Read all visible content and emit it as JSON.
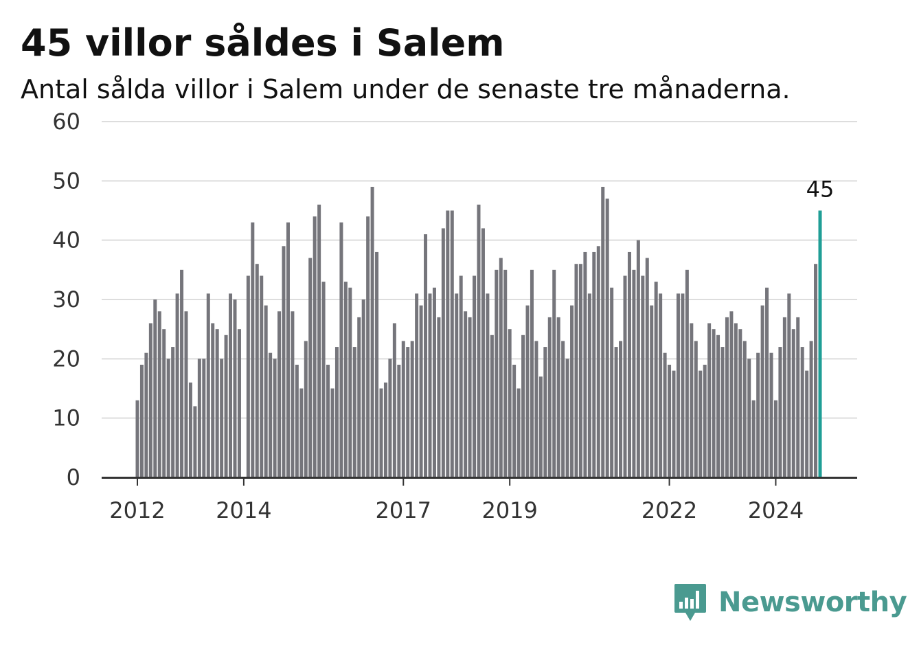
{
  "header": {
    "title": "45 villor såldes i Salem",
    "subtitle": "Antal sålda villor i Salem under de senaste tre månaderna."
  },
  "brand": {
    "name": "Newsworthy",
    "icon": "bar-chart-speech-bubble-icon",
    "color": "#4a9a90"
  },
  "chart_data": {
    "type": "bar",
    "title": "45 villor såldes i Salem",
    "subtitle": "Antal sålda villor i Salem under de senaste tre månaderna.",
    "xlabel": "",
    "ylabel": "",
    "ylim": [
      0,
      60
    ],
    "yticks": [
      0,
      10,
      20,
      30,
      40,
      50,
      60
    ],
    "grid": true,
    "legend": "none",
    "x_start": "2012-01",
    "frequency": "monthly",
    "xtick_labels": [
      {
        "label": "2012",
        "date": "2012-01"
      },
      {
        "label": "2014",
        "date": "2014-01"
      },
      {
        "label": "2017",
        "date": "2017-01"
      },
      {
        "label": "2019",
        "date": "2019-01"
      },
      {
        "label": "2022",
        "date": "2022-01"
      },
      {
        "label": "2024",
        "date": "2024-01"
      }
    ],
    "colors": {
      "bar": "#75757b",
      "highlight": "#1f9e96",
      "grid": "#dddddd",
      "axis": "#333333"
    },
    "highlight_label": "45",
    "values": [
      13,
      19,
      21,
      26,
      30,
      28,
      25,
      20,
      22,
      31,
      35,
      28,
      16,
      12,
      20,
      20,
      31,
      26,
      25,
      20,
      24,
      31,
      30,
      25,
      null,
      34,
      43,
      36,
      34,
      29,
      21,
      20,
      28,
      39,
      43,
      28,
      19,
      15,
      23,
      37,
      44,
      46,
      33,
      19,
      15,
      22,
      43,
      33,
      32,
      22,
      27,
      30,
      44,
      49,
      38,
      15,
      16,
      20,
      26,
      19,
      23,
      22,
      23,
      31,
      29,
      41,
      31,
      32,
      27,
      42,
      45,
      45,
      31,
      34,
      28,
      27,
      34,
      46,
      42,
      31,
      24,
      35,
      37,
      35,
      25,
      19,
      15,
      24,
      29,
      35,
      23,
      17,
      22,
      27,
      35,
      27,
      23,
      20,
      29,
      36,
      36,
      38,
      31,
      38,
      39,
      49,
      47,
      32,
      22,
      23,
      34,
      38,
      35,
      40,
      34,
      37,
      29,
      33,
      31,
      21,
      19,
      18,
      31,
      31,
      35,
      26,
      23,
      18,
      19,
      26,
      25,
      24,
      22,
      27,
      28,
      26,
      25,
      23,
      20,
      13,
      21,
      29,
      32,
      21,
      13,
      22,
      27,
      31,
      25,
      27,
      22,
      18,
      23,
      36,
      45
    ]
  }
}
